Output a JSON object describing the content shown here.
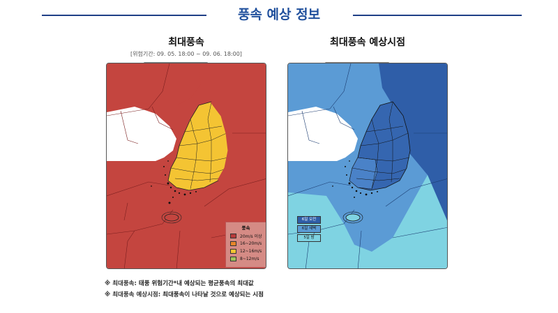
{
  "header": {
    "title": "풍속 예상 정보"
  },
  "left_panel": {
    "title": "최대풍속",
    "period": "[위험기간: 09. 05. 18:00 ~ 09. 06. 18:00]",
    "legend": {
      "title": "풍속",
      "items": [
        {
          "label": "20m/s 이상",
          "color": "#b83a3a"
        },
        {
          "label": "16~20m/s",
          "color": "#e8862a"
        },
        {
          "label": "12~16m/s",
          "color": "#f4c433"
        },
        {
          "label": "8~12m/s",
          "color": "#9ec25a"
        }
      ]
    }
  },
  "right_panel": {
    "title": "최대풍속 예상시점",
    "legend": {
      "items": [
        {
          "label": "6일 오전",
          "color": "#2f5ea8"
        },
        {
          "label": "6일 새벽",
          "color": "#5b9bd5"
        },
        {
          "label": "5일 밤",
          "color": "#7fd3e2"
        }
      ]
    }
  },
  "notes": [
    {
      "key": "※ 최대풍속:",
      "text": "태풍 위험기간*내 예상되는 평균풍속의 최대값"
    },
    {
      "key": "※ 최대풍속 예상시점:",
      "text": "최대풍속이 나타날 것으로 예상되는 시점"
    }
  ],
  "colors": {
    "accent": "#1f4f9c"
  }
}
